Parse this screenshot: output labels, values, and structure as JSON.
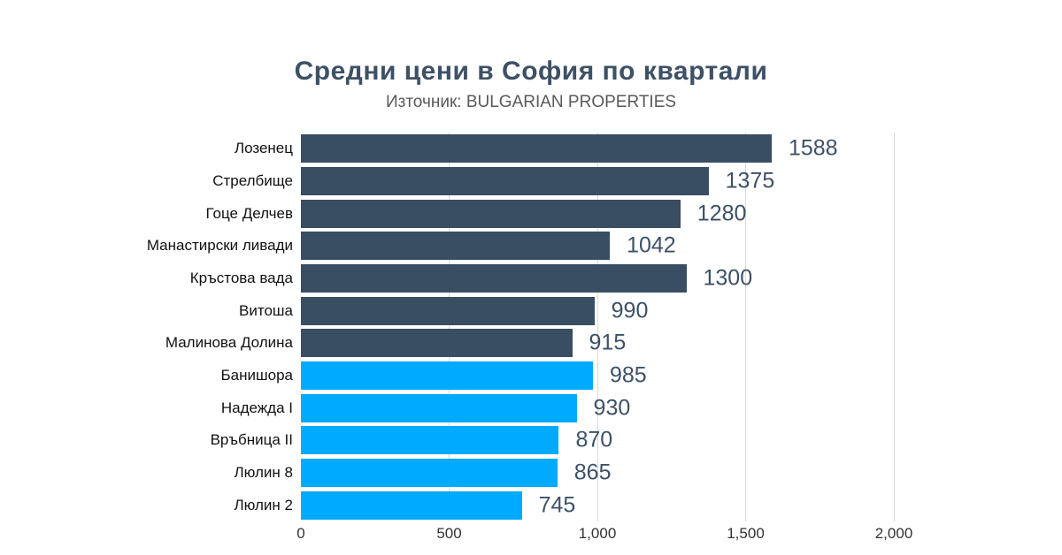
{
  "header": {
    "title": "Средни цени в София по квартали",
    "subtitle": "Източник: BULGARIAN PROPERTIES"
  },
  "colors": {
    "dark_bar": "#394d63",
    "blue_bar": "#00aaff",
    "title_text": "#3d5166",
    "value_text": "#3d5166",
    "gridline": "#d9d9d9",
    "axis_text": "#333333"
  },
  "chart_data": {
    "type": "bar",
    "orientation": "horizontal",
    "title": "Средни цени в София по квартали",
    "subtitle": "Източник: BULGARIAN PROPERTIES",
    "categories": [
      "Лозенец",
      "Стрелбище",
      "Гоце Делчев",
      "Манастирски ливади",
      "Кръстова вада",
      "Витоша",
      "Малинова Долина",
      "Банишора",
      "Надежда I",
      "Връбница II",
      "Люлин 8",
      "Люлин 2"
    ],
    "values": [
      1588,
      1375,
      1280,
      1042,
      1300,
      990,
      915,
      985,
      930,
      870,
      865,
      745
    ],
    "bar_colors": [
      "dark",
      "dark",
      "dark",
      "dark",
      "dark",
      "dark",
      "dark",
      "blue",
      "blue",
      "blue",
      "blue",
      "blue"
    ],
    "xlim": [
      0,
      2000
    ],
    "x_ticks": [
      {
        "value": 0,
        "label": "0"
      },
      {
        "value": 500,
        "label": "500"
      },
      {
        "value": 1000,
        "label": "1,000"
      },
      {
        "value": 1500,
        "label": "1,500"
      },
      {
        "value": 2000,
        "label": "2,000"
      }
    ],
    "grid": "vertical-only",
    "legend": "none",
    "value_labels": "outside-end"
  }
}
